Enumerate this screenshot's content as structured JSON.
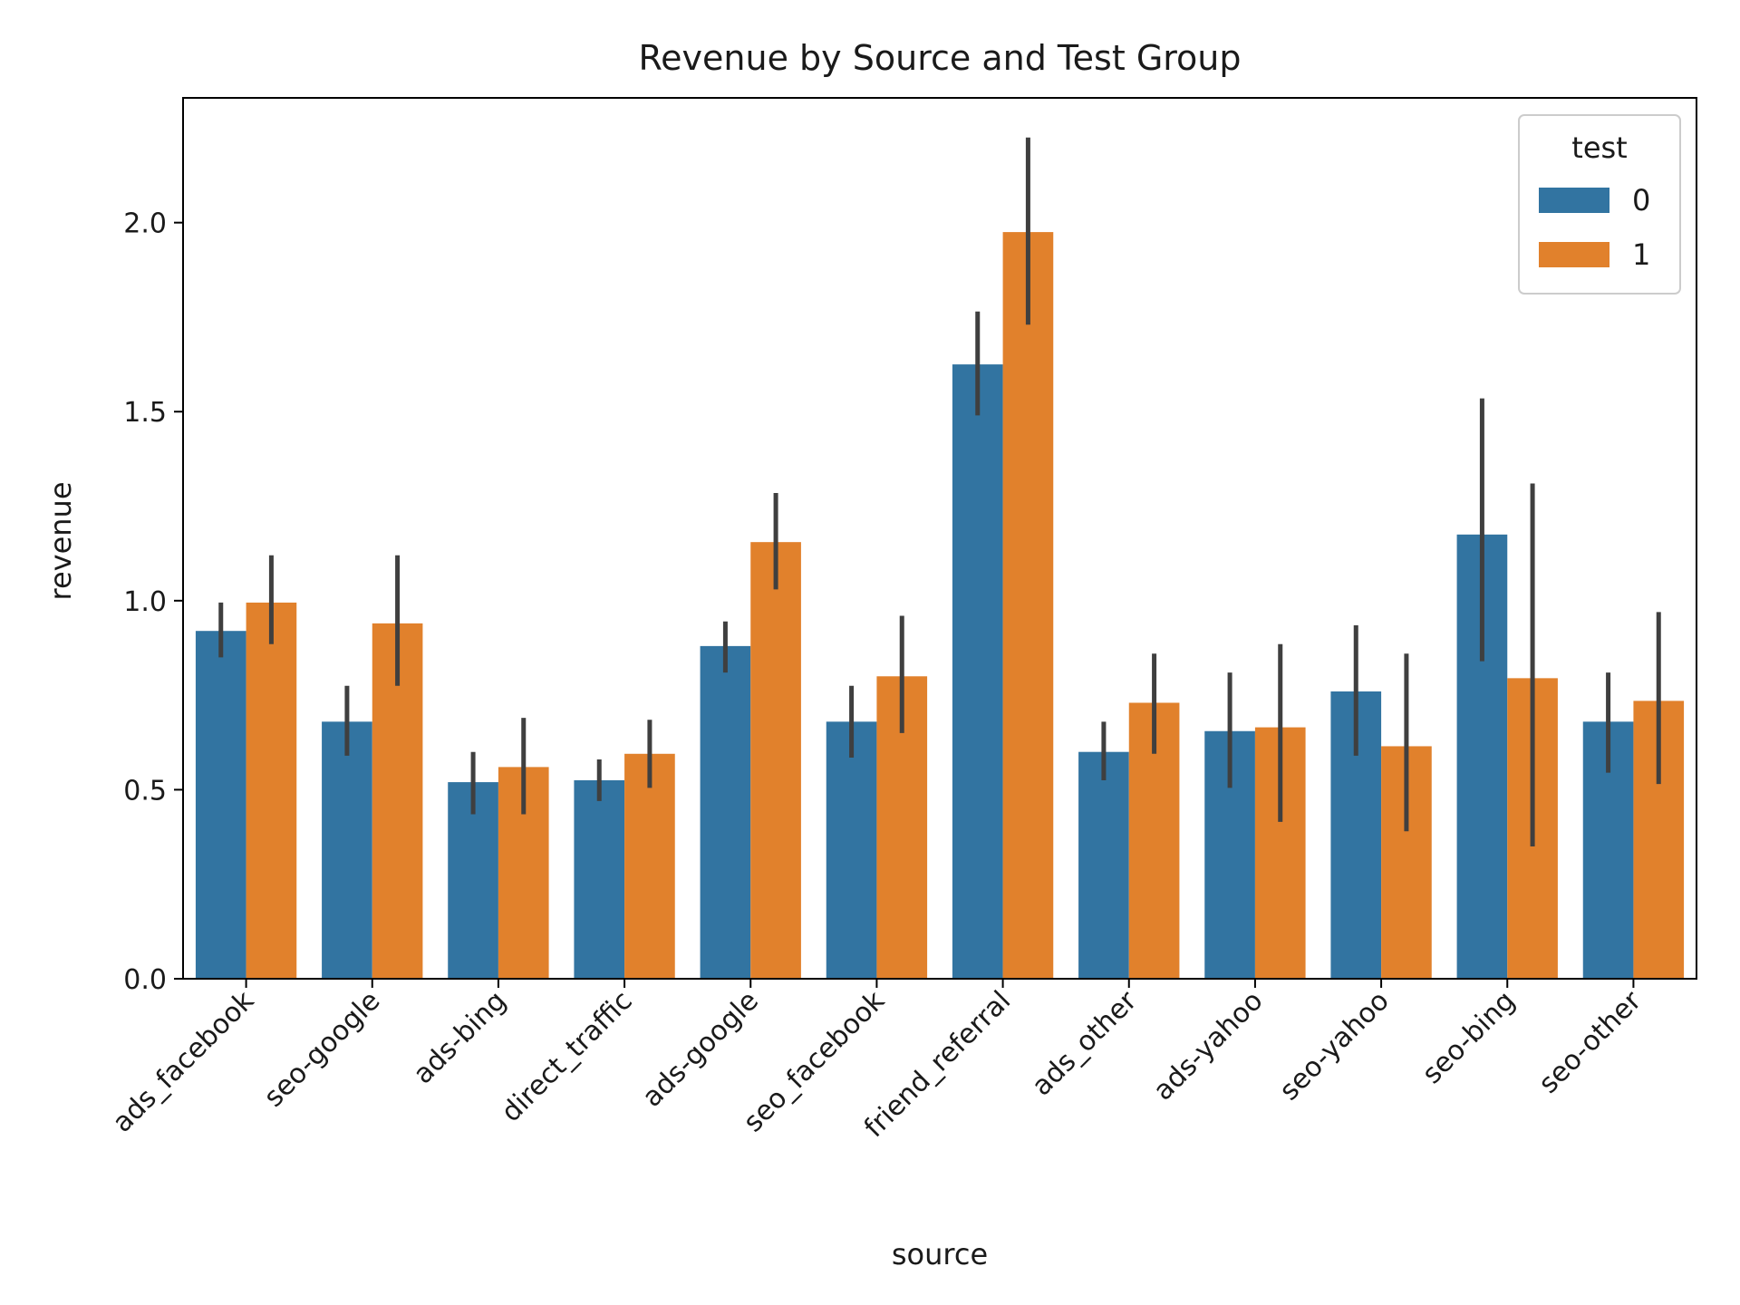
{
  "chart_data": {
    "type": "bar",
    "title": "Revenue by Source and Test Group",
    "xlabel": "source",
    "ylabel": "revenue",
    "ylim": [
      0,
      2.33
    ],
    "yticks": [
      0.0,
      0.5,
      1.0,
      1.5,
      2.0
    ],
    "ytick_labels": [
      "0.0",
      "0.5",
      "1.0",
      "1.5",
      "2.0"
    ],
    "grid": false,
    "categories": [
      "ads_facebook",
      "seo-google",
      "ads-bing",
      "direct_traffic",
      "ads-google",
      "seo_facebook",
      "friend_referral",
      "ads_other",
      "ads-yahoo",
      "seo-yahoo",
      "seo-bing",
      "seo-other"
    ],
    "legend": {
      "title": "test",
      "position": "top-right"
    },
    "series": [
      {
        "name": "0",
        "color": "#3274a1",
        "values": [
          0.92,
          0.68,
          0.52,
          0.525,
          0.88,
          0.68,
          1.625,
          0.6,
          0.655,
          0.76,
          1.175,
          0.68
        ],
        "ci_low": [
          0.85,
          0.59,
          0.435,
          0.47,
          0.81,
          0.585,
          1.49,
          0.525,
          0.505,
          0.59,
          0.84,
          0.545
        ],
        "ci_high": [
          0.995,
          0.775,
          0.6,
          0.58,
          0.945,
          0.775,
          1.765,
          0.68,
          0.81,
          0.935,
          1.535,
          0.81
        ]
      },
      {
        "name": "1",
        "color": "#e1812c",
        "values": [
          0.995,
          0.94,
          0.56,
          0.595,
          1.155,
          0.8,
          1.975,
          0.73,
          0.665,
          0.615,
          0.795,
          0.735
        ],
        "ci_low": [
          0.885,
          0.775,
          0.435,
          0.505,
          1.03,
          0.65,
          1.73,
          0.595,
          0.415,
          0.39,
          0.35,
          0.515
        ],
        "ci_high": [
          1.12,
          1.12,
          0.69,
          0.685,
          1.285,
          0.96,
          2.225,
          0.86,
          0.885,
          0.86,
          1.31,
          0.97
        ]
      }
    ],
    "errorbar_color": "#3f3f3f"
  }
}
